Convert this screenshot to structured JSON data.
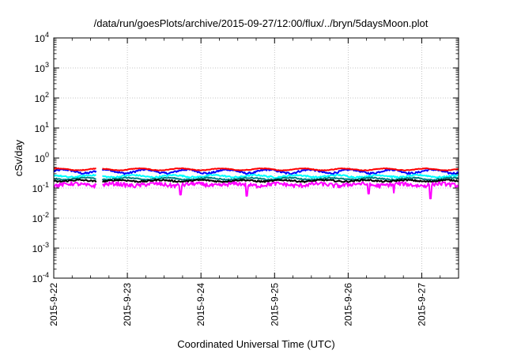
{
  "chart_data": {
    "type": "line",
    "title": "/data/run/goesPlots/archive/2015-09-27/12:00/flux/../bryn/5daysMoon.plot",
    "xlabel": "Coordinated Universal Time (UTC)",
    "ylabel": "cSv/day",
    "yscale": "log",
    "ylim": [
      0.0001,
      10000
    ],
    "y_ticks": [
      {
        "value": 0.0001,
        "base": "10",
        "exp": "-4"
      },
      {
        "value": 0.001,
        "base": "10",
        "exp": "-3"
      },
      {
        "value": 0.01,
        "base": "10",
        "exp": "-2"
      },
      {
        "value": 0.1,
        "base": "10",
        "exp": "-1"
      },
      {
        "value": 1,
        "base": "10",
        "exp": "0"
      },
      {
        "value": 10,
        "base": "10",
        "exp": "1"
      },
      {
        "value": 100,
        "base": "10",
        "exp": "2"
      },
      {
        "value": 1000,
        "base": "10",
        "exp": "3"
      },
      {
        "value": 10000,
        "base": "10",
        "exp": "4"
      }
    ],
    "xlim": [
      0,
      5.5
    ],
    "x_ticks": [
      {
        "value": 0,
        "label": "2015-9-22"
      },
      {
        "value": 1,
        "label": "2015-9-23"
      },
      {
        "value": 2,
        "label": "2015-9-24"
      },
      {
        "value": 3,
        "label": "2015-9-25"
      },
      {
        "value": 4,
        "label": "2015-9-26"
      },
      {
        "value": 5,
        "label": "2015-9-27"
      }
    ],
    "grid": true,
    "legend": "none",
    "data_gap": [
      0.58,
      0.66
    ],
    "series": [
      {
        "color": "#0000ff",
        "base": 0.36,
        "amp": 0.05,
        "noise": 0.05,
        "dips": []
      },
      {
        "color": "#ff0000",
        "base": 0.42,
        "amp": 0.03,
        "noise": 0.02,
        "dips": []
      },
      {
        "color": "#00ffff",
        "base": 0.25,
        "amp": 0.02,
        "noise": 0.03,
        "dips": []
      },
      {
        "color": "#008080",
        "base": 0.205,
        "amp": 0.015,
        "noise": 0.02,
        "dips": []
      },
      {
        "color": "#000000",
        "base": 0.175,
        "amp": 0.01,
        "noise": 0.02,
        "dips": []
      },
      {
        "color": "#ff00ff",
        "base": 0.13,
        "amp": 0.01,
        "noise": 0.04,
        "dips": [
          [
            1.72,
            0.06
          ],
          [
            2.62,
            0.055
          ],
          [
            4.28,
            0.065
          ],
          [
            4.62,
            0.07
          ],
          [
            5.12,
            0.045
          ]
        ]
      }
    ]
  }
}
